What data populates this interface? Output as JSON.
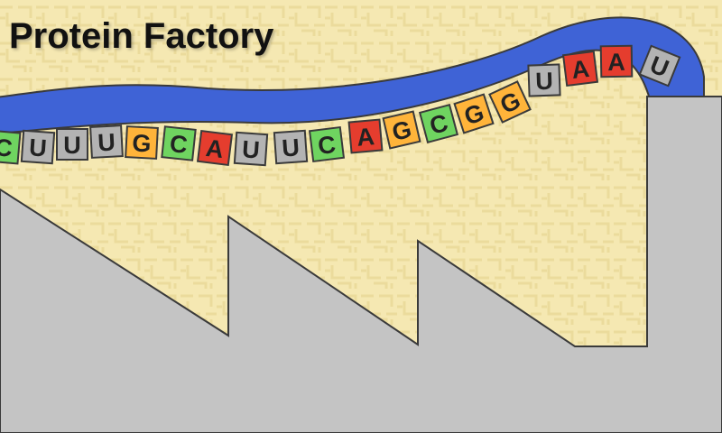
{
  "game": {
    "title": "Protein Factory"
  },
  "mrna": {
    "sequence": [
      "C",
      "U",
      "U",
      "U",
      "G",
      "C",
      "A",
      "U",
      "U",
      "C",
      "A",
      "G",
      "C",
      "G",
      "G",
      "U",
      "A",
      "A",
      "U"
    ]
  },
  "colors": {
    "background": "#f5e8b2",
    "background_pattern": "#eadc9c",
    "strand": "#3f63d6",
    "factory": "#c4c4c4",
    "outline": "#3a3a3a",
    "nucleotides": {
      "A": "#e53d2e",
      "U": "#b3b3b3",
      "G": "#ffb43a",
      "C": "#6fd460"
    }
  }
}
